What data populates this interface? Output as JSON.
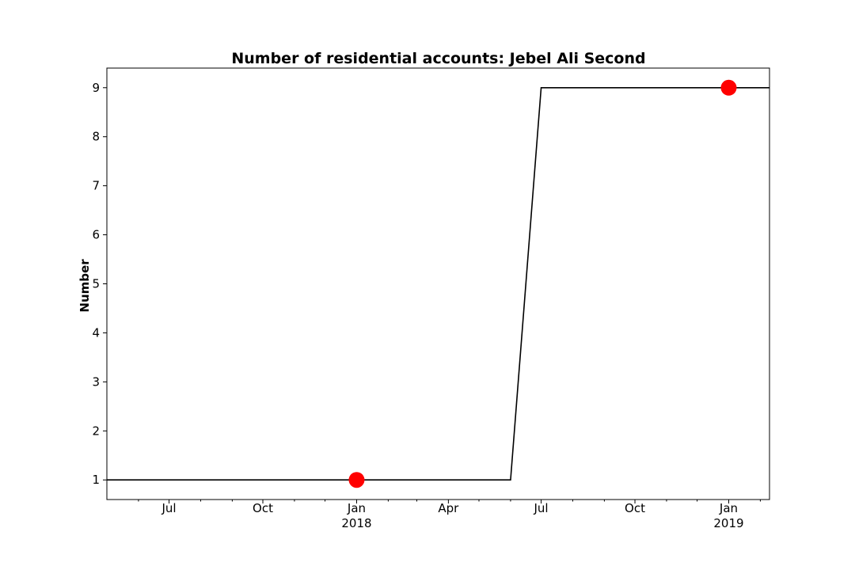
{
  "chart_data": {
    "type": "line",
    "title": "Number of residential accounts: Jebel Ali Second",
    "xlabel": "",
    "ylabel": "Number",
    "xlim": [
      "2017-05-01",
      "2019-02-10"
    ],
    "ylim": [
      0.6,
      9.4
    ],
    "grid": false,
    "legend": "none",
    "y_ticks": [
      1,
      2,
      3,
      4,
      5,
      6,
      7,
      8,
      9
    ],
    "x_major_ticks": [
      {
        "date": "2017-07-01",
        "label": "Jul",
        "sublabel": ""
      },
      {
        "date": "2017-10-01",
        "label": "Oct",
        "sublabel": ""
      },
      {
        "date": "2018-01-01",
        "label": "Jan",
        "sublabel": "2018"
      },
      {
        "date": "2018-04-01",
        "label": "Apr",
        "sublabel": ""
      },
      {
        "date": "2018-07-01",
        "label": "Jul",
        "sublabel": ""
      },
      {
        "date": "2018-10-01",
        "label": "Oct",
        "sublabel": ""
      },
      {
        "date": "2019-01-01",
        "label": "Jan",
        "sublabel": "2019"
      }
    ],
    "x_minor_ticks": [
      "2017-06-01",
      "2017-08-01",
      "2017-09-01",
      "2017-11-01",
      "2017-12-01",
      "2018-02-01",
      "2018-03-01",
      "2018-05-01",
      "2018-06-01",
      "2018-08-01",
      "2018-09-01",
      "2018-11-01",
      "2018-12-01",
      "2019-02-01"
    ],
    "series": [
      {
        "color": "#000000",
        "x": [
          "2017-05-01",
          "2018-06-01",
          "2018-07-01",
          "2019-02-10"
        ],
        "values": [
          1,
          1,
          9,
          9
        ]
      }
    ],
    "highlight_points": {
      "color": "#ff0000",
      "x": [
        "2018-01-01",
        "2019-01-01"
      ],
      "values": [
        1,
        9
      ]
    }
  }
}
